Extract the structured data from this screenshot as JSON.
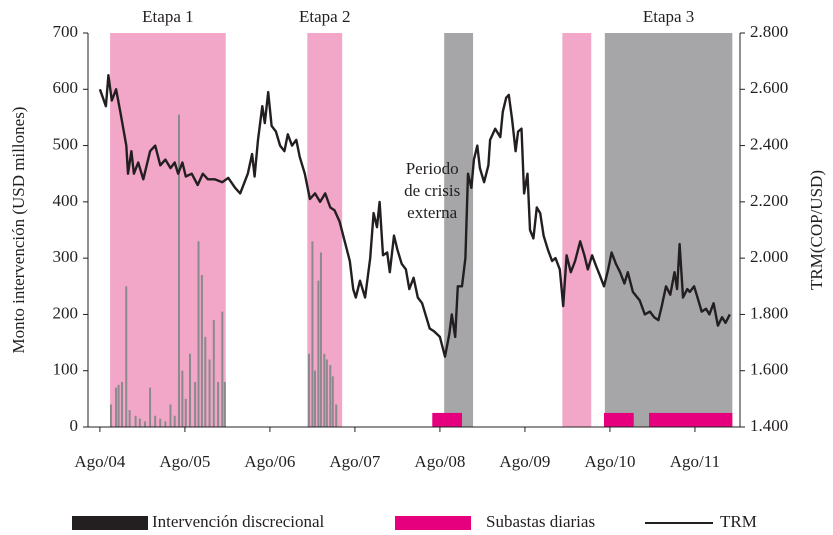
{
  "chart_data": {
    "type": "combo",
    "y_label": "Monto intervención (USD millones)",
    "y2_label": "TRM(COP/USD)",
    "xlim": [
      2004.44,
      2012.11
    ],
    "xticks": [
      {
        "value": 2004.58,
        "label": "Ago/04"
      },
      {
        "value": 2005.58,
        "label": "Ago/05"
      },
      {
        "value": 2006.58,
        "label": "Ago/06"
      },
      {
        "value": 2007.58,
        "label": "Ago/07"
      },
      {
        "value": 2008.58,
        "label": "Ago/08"
      },
      {
        "value": 2009.58,
        "label": "Ago/09"
      },
      {
        "value": 2010.58,
        "label": "Ago/10"
      },
      {
        "value": 2011.58,
        "label": "Ago/11"
      }
    ],
    "ylim": [
      0,
      700
    ],
    "yticks": [
      0,
      100,
      200,
      300,
      400,
      500,
      600,
      700
    ],
    "y2lim": [
      1400,
      2800
    ],
    "y2ticks": [
      {
        "value": 1400,
        "label": "1.400"
      },
      {
        "value": 1600,
        "label": "1.600"
      },
      {
        "value": 1800,
        "label": "1.800"
      },
      {
        "value": 2000,
        "label": "2.000"
      },
      {
        "value": 2200,
        "label": "2.200"
      },
      {
        "value": 2400,
        "label": "2.400"
      },
      {
        "value": 2600,
        "label": "2.600"
      },
      {
        "value": 2800,
        "label": "2.800"
      }
    ],
    "periods": [
      {
        "start": 2004.7,
        "end": 2006.06,
        "color": "#f2a7c9",
        "label": "Etapa 1"
      },
      {
        "start": 2007.02,
        "end": 2007.43,
        "color": "#f2a7c9",
        "label": "Etapa 2"
      },
      {
        "start": 2008.63,
        "end": 2008.97,
        "color": "#a6a6a8",
        "label": [
          "Periodo",
          "de crisis",
          "externa"
        ]
      },
      {
        "start": 2010.02,
        "end": 2010.36,
        "color": "#f2a7c9"
      },
      {
        "start": 2010.52,
        "end": 2012.02,
        "color": "#a6a6a8",
        "label": "Etapa 3"
      }
    ],
    "series": [
      {
        "name": "Intervención discrecional",
        "color": "#8a8a8c",
        "legend_color": "#231f20",
        "x": [
          2004.71,
          2004.77,
          2004.8,
          2004.84,
          2004.89,
          2004.93,
          2005.0,
          2005.05,
          2005.11,
          2005.17,
          2005.23,
          2005.29,
          2005.35,
          2005.41,
          2005.46,
          2005.51,
          2005.55,
          2005.59,
          2005.64,
          2005.7,
          2005.74,
          2005.78,
          2005.82,
          2005.87,
          2005.92,
          2005.97,
          2006.02,
          2006.05,
          2007.04,
          2007.08,
          2007.11,
          2007.15,
          2007.18,
          2007.22,
          2007.25,
          2007.29,
          2007.32,
          2007.36
        ],
        "values": [
          40,
          70,
          75,
          80,
          250,
          30,
          20,
          15,
          10,
          70,
          20,
          15,
          10,
          40,
          20,
          555,
          100,
          50,
          130,
          80,
          330,
          270,
          160,
          120,
          190,
          80,
          205,
          80,
          130,
          330,
          100,
          260,
          310,
          130,
          120,
          110,
          90,
          40
        ]
      },
      {
        "name": "Subastas diarias",
        "color": "#e6007e",
        "starts": [
          2008.49,
          2010.51,
          2011.04
        ],
        "ends": [
          2008.84,
          2010.86,
          2012.02
        ],
        "values": [
          25,
          25,
          25
        ]
      },
      {
        "name": "TRM",
        "color": "#231f20",
        "axis": "y2",
        "x": [
          2004.58,
          2004.65,
          2004.68,
          2004.72,
          2004.77,
          2004.82,
          2004.89,
          2004.91,
          2004.95,
          2004.98,
          2005.03,
          2005.09,
          2005.17,
          2005.23,
          2005.29,
          2005.35,
          2005.41,
          2005.46,
          2005.5,
          2005.55,
          2005.59,
          2005.66,
          2005.73,
          2005.79,
          2005.85,
          2005.93,
          2006.02,
          2006.09,
          2006.17,
          2006.23,
          2006.32,
          2006.37,
          2006.4,
          2006.44,
          2006.49,
          2006.52,
          2006.56,
          2006.6,
          2006.65,
          2006.7,
          2006.75,
          2006.79,
          2006.84,
          2006.89,
          2006.93,
          2006.99,
          2007.05,
          2007.11,
          2007.17,
          2007.23,
          2007.29,
          2007.34,
          2007.4,
          2007.46,
          2007.52,
          2007.56,
          2007.59,
          2007.64,
          2007.7,
          2007.76,
          2007.8,
          2007.84,
          2007.87,
          2007.91,
          2007.96,
          2007.99,
          2008.04,
          2008.08,
          2008.13,
          2008.18,
          2008.22,
          2008.27,
          2008.32,
          2008.37,
          2008.42,
          2008.46,
          2008.51,
          2008.58,
          2008.64,
          2008.69,
          2008.72,
          2008.76,
          2008.79,
          2008.84,
          2008.88,
          2008.91,
          2008.95,
          2008.98,
          2009.02,
          2009.05,
          2009.1,
          2009.15,
          2009.17,
          2009.23,
          2009.29,
          2009.32,
          2009.36,
          2009.39,
          2009.43,
          2009.47,
          2009.5,
          2009.54,
          2009.57,
          2009.61,
          2009.64,
          2009.68,
          2009.72,
          2009.76,
          2009.8,
          2009.85,
          2009.9,
          2009.94,
          2009.99,
          2010.03,
          2010.07,
          2010.12,
          2010.17,
          2010.23,
          2010.28,
          2010.32,
          2010.37,
          2010.42,
          2010.46,
          2010.51,
          2010.56,
          2010.6,
          2010.65,
          2010.7,
          2010.75,
          2010.79,
          2010.85,
          2010.93,
          2010.99,
          2011.05,
          2011.1,
          2011.15,
          2011.19,
          2011.24,
          2011.29,
          2011.34,
          2011.37,
          2011.4,
          2011.44,
          2011.49,
          2011.52,
          2011.57,
          2011.61,
          2011.66,
          2011.71,
          2011.75,
          2011.8,
          2011.85,
          2011.9,
          2011.94,
          2011.99
        ],
        "values": [
          2600,
          2540,
          2650,
          2560,
          2600,
          2520,
          2400,
          2300,
          2380,
          2300,
          2340,
          2280,
          2380,
          2400,
          2330,
          2350,
          2320,
          2340,
          2300,
          2340,
          2290,
          2300,
          2260,
          2300,
          2280,
          2280,
          2270,
          2285,
          2250,
          2230,
          2300,
          2370,
          2290,
          2420,
          2540,
          2480,
          2590,
          2470,
          2450,
          2400,
          2380,
          2440,
          2400,
          2420,
          2360,
          2300,
          2210,
          2230,
          2200,
          2230,
          2180,
          2170,
          2130,
          2060,
          1990,
          1890,
          1860,
          1920,
          1860,
          2000,
          2160,
          2110,
          2200,
          2010,
          2020,
          1950,
          2080,
          2030,
          1980,
          1960,
          1890,
          1930,
          1860,
          1840,
          1790,
          1750,
          1740,
          1720,
          1650,
          1730,
          1800,
          1720,
          1900,
          1900,
          2000,
          2300,
          2250,
          2350,
          2400,
          2320,
          2270,
          2330,
          2420,
          2460,
          2430,
          2520,
          2570,
          2580,
          2490,
          2380,
          2450,
          2460,
          2230,
          2300,
          2100,
          2070,
          2180,
          2160,
          2080,
          2030,
          1990,
          2000,
          1960,
          1830,
          2010,
          1950,
          1990,
          2060,
          2010,
          1960,
          2010,
          1970,
          1940,
          1900,
          1960,
          2020,
          1980,
          1950,
          1910,
          1950,
          1880,
          1850,
          1800,
          1810,
          1790,
          1780,
          1830,
          1900,
          1870,
          1950,
          1890,
          2050,
          1860,
          1890,
          1880,
          1900,
          1860,
          1810,
          1820,
          1800,
          1840,
          1760,
          1790,
          1770,
          1800
        ]
      }
    ]
  }
}
